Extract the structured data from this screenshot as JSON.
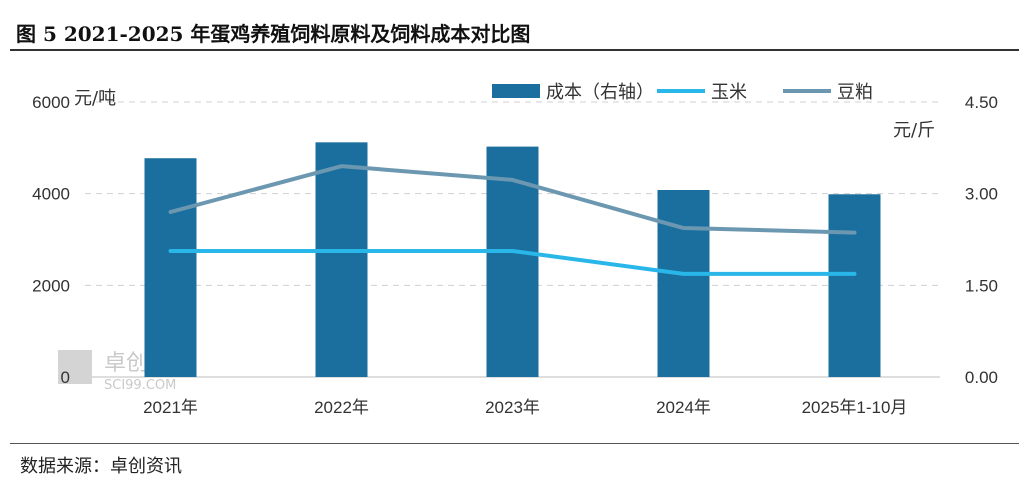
{
  "title": "图 5 2021-2025 年蛋鸡养殖饲料原料及饲料成本对比图",
  "source": "数据来源：卓创资讯",
  "watermark": {
    "cn": "卓创资讯",
    "en": "SCI99.COM"
  },
  "chart_data": {
    "type": "bar+line",
    "categories": [
      "2021年",
      "2022年",
      "2023年",
      "2024年",
      "2025年1-10月"
    ],
    "left_axis": {
      "unit": "元/吨",
      "ticks": [
        "0",
        "2000",
        "4000",
        "6000"
      ],
      "ylim": [
        0,
        6000
      ]
    },
    "right_axis": {
      "unit": "元/斤",
      "ticks": [
        "0.00",
        "1.50",
        "3.00",
        "4.50"
      ],
      "ylim": [
        0,
        4.5
      ]
    },
    "series": [
      {
        "name": "成本（右轴）",
        "type": "bar",
        "axis": "right",
        "color": "#1a6f9e",
        "values": [
          3.58,
          3.84,
          3.77,
          3.06,
          2.99
        ]
      },
      {
        "name": "玉米",
        "type": "line",
        "axis": "left",
        "color": "#29b6e8",
        "values": [
          2750,
          2750,
          2750,
          2250,
          2250
        ]
      },
      {
        "name": "豆粕",
        "type": "line",
        "axis": "left",
        "color": "#6b98b0",
        "values": [
          3600,
          4600,
          4300,
          3250,
          3150
        ]
      }
    ],
    "legend_position": "top",
    "grid": "dashed horizontal"
  }
}
